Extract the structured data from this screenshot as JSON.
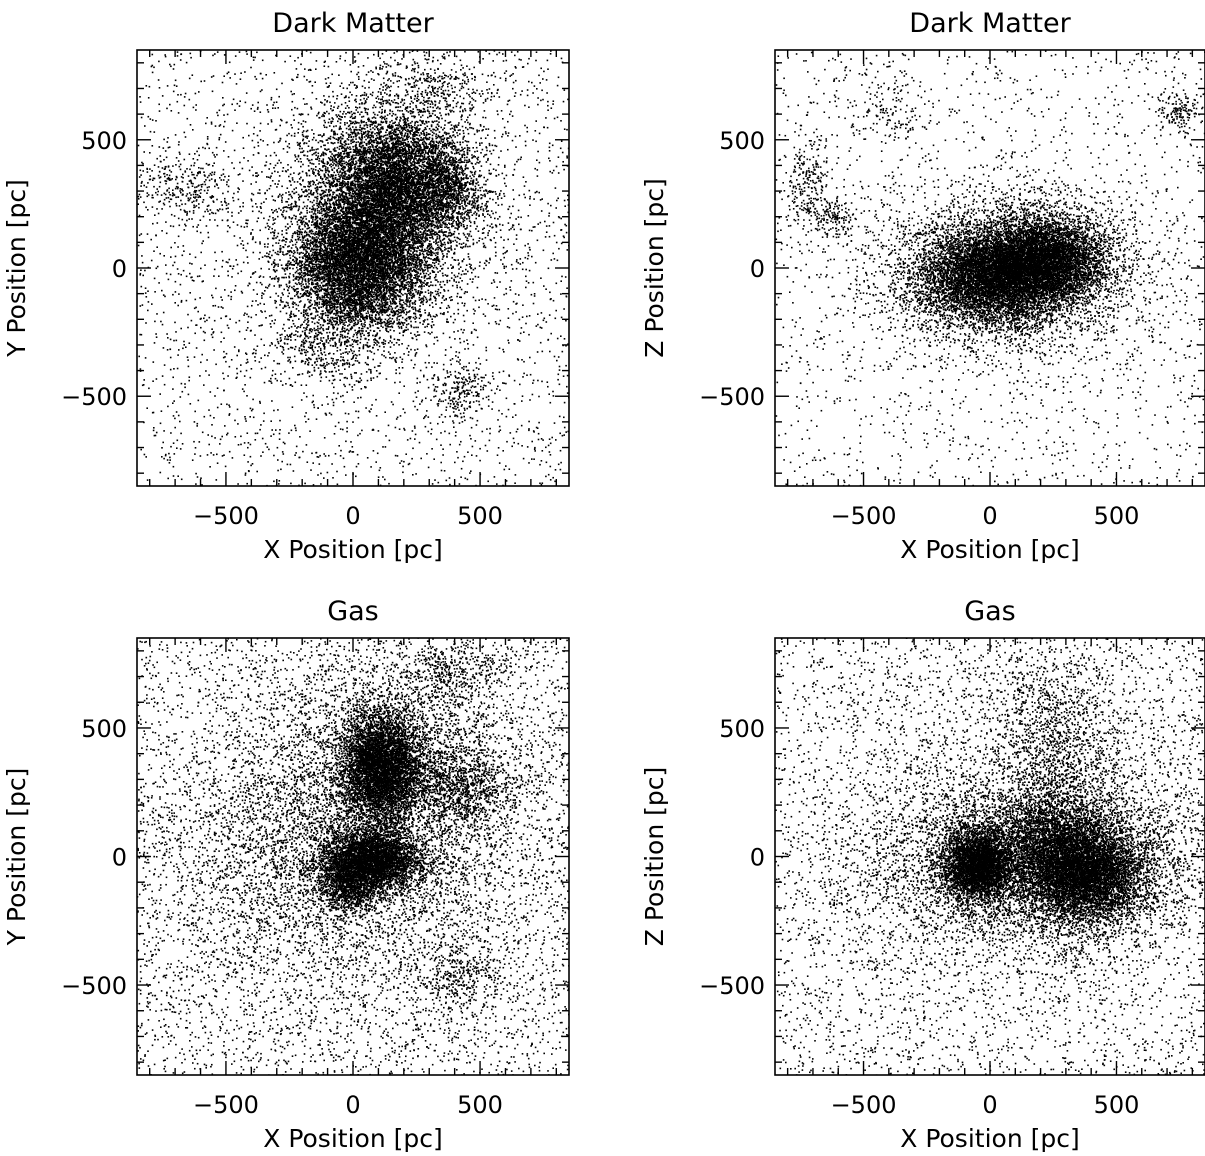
{
  "chart_data": [
    {
      "type": "scatter",
      "title": "Dark Matter",
      "xlabel": "X Position [pc]",
      "ylabel": "Y Position [pc]",
      "xlim": [
        -850,
        850
      ],
      "ylim": [
        -850,
        850
      ],
      "xticks": [
        -500,
        0,
        500
      ],
      "yticks": [
        -500,
        0,
        500
      ],
      "xtick_labels": [
        "−500",
        "0",
        "500"
      ],
      "ytick_labels": [
        "−500",
        "0",
        "500"
      ],
      "series": [
        {
          "values": {
            "background": {
              "n": 2600,
              "range": [
                -850,
                850
              ]
            },
            "clumps": [
              {
                "x": 170,
                "y": 330,
                "sx": 140,
                "sy": 140,
                "n": 6500
              },
              {
                "x": 20,
                "y": 20,
                "sx": 130,
                "sy": 130,
                "n": 6500
              },
              {
                "x": 80,
                "y": 180,
                "sx": 230,
                "sy": 260,
                "n": 3200
              },
              {
                "x": 380,
                "y": 300,
                "sx": 60,
                "sy": 60,
                "n": 500
              },
              {
                "x": -650,
                "y": 320,
                "sx": 90,
                "sy": 70,
                "n": 260
              },
              {
                "x": 420,
                "y": -480,
                "sx": 70,
                "sy": 60,
                "n": 200
              },
              {
                "x": -150,
                "y": -300,
                "sx": 120,
                "sy": 70,
                "n": 300
              },
              {
                "x": 320,
                "y": 720,
                "sx": 120,
                "sy": 60,
                "n": 220
              }
            ]
          }
        }
      ]
    },
    {
      "type": "scatter",
      "title": "Dark Matter",
      "xlabel": "X Position [pc]",
      "ylabel": "Z Position [pc]",
      "xlim": [
        -850,
        850
      ],
      "ylim": [
        -850,
        850
      ],
      "xticks": [
        -500,
        0,
        500
      ],
      "yticks": [
        -500,
        0,
        500
      ],
      "xtick_labels": [
        "−500",
        "0",
        "500"
      ],
      "ytick_labels": [
        "−500",
        "0",
        "500"
      ],
      "series": [
        {
          "values": {
            "background": {
              "n": 1800,
              "range": [
                -850,
                850
              ]
            },
            "clumps": [
              {
                "x": 20,
                "y": -30,
                "sx": 150,
                "sy": 90,
                "n": 6000
              },
              {
                "x": 220,
                "y": 40,
                "sx": 120,
                "sy": 80,
                "n": 4000
              },
              {
                "x": 80,
                "y": -10,
                "sx": 250,
                "sy": 150,
                "n": 4200
              },
              {
                "x": -720,
                "y": 330,
                "sx": 40,
                "sy": 90,
                "n": 200
              },
              {
                "x": -620,
                "y": 200,
                "sx": 50,
                "sy": 50,
                "n": 150
              },
              {
                "x": 740,
                "y": 610,
                "sx": 40,
                "sy": 40,
                "n": 150
              },
              {
                "x": -400,
                "y": 620,
                "sx": 80,
                "sy": 70,
                "n": 120
              }
            ]
          }
        }
      ]
    },
    {
      "type": "scatter",
      "title": "Gas",
      "xlabel": "X Position [pc]",
      "ylabel": "Y Position [pc]",
      "xlim": [
        -850,
        850
      ],
      "ylim": [
        -850,
        850
      ],
      "xticks": [
        -500,
        0,
        500
      ],
      "yticks": [
        -500,
        0,
        500
      ],
      "xtick_labels": [
        "−500",
        "0",
        "500"
      ],
      "ytick_labels": [
        "−500",
        "0",
        "500"
      ],
      "series": [
        {
          "values": {
            "background": {
              "n": 4800,
              "range": [
                -850,
                850
              ]
            },
            "clumps": [
              {
                "x": 110,
                "y": 360,
                "sx": 80,
                "sy": 110,
                "n": 5200
              },
              {
                "x": 70,
                "y": -10,
                "sx": 100,
                "sy": 60,
                "n": 4000
              },
              {
                "x": -20,
                "y": -110,
                "sx": 60,
                "sy": 50,
                "n": 900
              },
              {
                "x": 420,
                "y": 280,
                "sx": 110,
                "sy": 80,
                "n": 900
              },
              {
                "x": 150,
                "y": 200,
                "sx": 280,
                "sy": 330,
                "n": 4500
              },
              {
                "x": -300,
                "y": 0,
                "sx": 260,
                "sy": 260,
                "n": 1800
              },
              {
                "x": 420,
                "y": -460,
                "sx": 90,
                "sy": 70,
                "n": 300
              },
              {
                "x": 380,
                "y": 720,
                "sx": 100,
                "sy": 60,
                "n": 300
              }
            ]
          }
        }
      ]
    },
    {
      "type": "scatter",
      "title": "Gas",
      "xlabel": "X Position [pc]",
      "ylabel": "Z Position [pc]",
      "xlim": [
        -850,
        850
      ],
      "ylim": [
        -850,
        850
      ],
      "xticks": [
        -500,
        0,
        500
      ],
      "yticks": [
        -500,
        0,
        500
      ],
      "xtick_labels": [
        "−500",
        "0",
        "500"
      ],
      "ytick_labels": [
        "−500",
        "0",
        "500"
      ],
      "series": [
        {
          "values": {
            "background": {
              "n": 3800,
              "range": [
                -850,
                850
              ]
            },
            "clumps": [
              {
                "x": -50,
                "y": -30,
                "sx": 70,
                "sy": 70,
                "n": 3500
              },
              {
                "x": 380,
                "y": -70,
                "sx": 110,
                "sy": 90,
                "n": 4500
              },
              {
                "x": 250,
                "y": 50,
                "sx": 110,
                "sy": 110,
                "n": 2500
              },
              {
                "x": 200,
                "y": -30,
                "sx": 300,
                "sy": 150,
                "n": 5000
              },
              {
                "x": 250,
                "y": 450,
                "sx": 110,
                "sy": 180,
                "n": 900
              },
              {
                "x": 100,
                "y": 100,
                "sx": 400,
                "sy": 350,
                "n": 2500
              }
            ]
          }
        }
      ]
    }
  ]
}
